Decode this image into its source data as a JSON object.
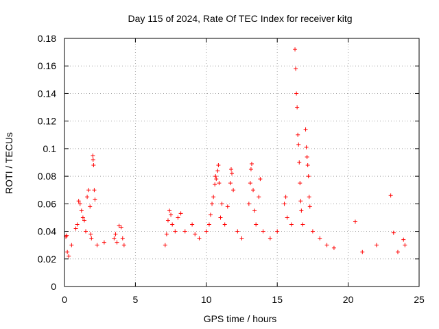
{
  "chart_data": {
    "type": "scatter",
    "title": "Day 115 of 2024, Rate Of TEC Index for receiver kitg",
    "xlabel": "GPS time / hours",
    "ylabel": "ROTI / TECUs",
    "xlim": [
      0,
      25
    ],
    "ylim": [
      0,
      0.18
    ],
    "x_ticks": [
      0,
      5,
      10,
      15,
      20,
      25
    ],
    "x_tick_labels": [
      "0",
      "5",
      "10",
      "15",
      "20",
      "25"
    ],
    "y_ticks": [
      0,
      0.02,
      0.04,
      0.06,
      0.08,
      0.1,
      0.12,
      0.14,
      0.16,
      0.18
    ],
    "y_tick_labels": [
      "0",
      "0.02",
      "0.04",
      "0.06",
      "0.08",
      "0.1",
      "0.12",
      "0.14",
      "0.16",
      "0.18"
    ],
    "grid": true,
    "marker": "+",
    "series_color": "#ff0000",
    "data_gap_hours": [
      4.3,
      7.0
    ],
    "series": [
      {
        "name": "ROTI",
        "points": [
          [
            0.1,
            0.036
          ],
          [
            0.15,
            0.037
          ],
          [
            0.2,
            0.025
          ],
          [
            0.3,
            0.022
          ],
          [
            0.5,
            0.03
          ],
          [
            0.8,
            0.042
          ],
          [
            0.9,
            0.045
          ],
          [
            1.0,
            0.062
          ],
          [
            1.1,
            0.06
          ],
          [
            1.2,
            0.055
          ],
          [
            1.3,
            0.05
          ],
          [
            1.4,
            0.048
          ],
          [
            1.5,
            0.04
          ],
          [
            1.6,
            0.065
          ],
          [
            1.7,
            0.07
          ],
          [
            1.8,
            0.058
          ],
          [
            1.85,
            0.038
          ],
          [
            1.9,
            0.035
          ],
          [
            2.0,
            0.095
          ],
          [
            2.02,
            0.092
          ],
          [
            2.05,
            0.088
          ],
          [
            2.1,
            0.07
          ],
          [
            2.15,
            0.063
          ],
          [
            2.3,
            0.03
          ],
          [
            2.8,
            0.032
          ],
          [
            3.5,
            0.035
          ],
          [
            3.6,
            0.038
          ],
          [
            3.7,
            0.032
          ],
          [
            3.85,
            0.044
          ],
          [
            4.0,
            0.043
          ],
          [
            4.1,
            0.035
          ],
          [
            4.2,
            0.03
          ],
          [
            7.1,
            0.03
          ],
          [
            7.2,
            0.038
          ],
          [
            7.3,
            0.048
          ],
          [
            7.4,
            0.055
          ],
          [
            7.5,
            0.052
          ],
          [
            7.6,
            0.045
          ],
          [
            7.8,
            0.04
          ],
          [
            8.0,
            0.05
          ],
          [
            8.2,
            0.053
          ],
          [
            8.5,
            0.04
          ],
          [
            9.0,
            0.045
          ],
          [
            9.2,
            0.038
          ],
          [
            9.5,
            0.035
          ],
          [
            10.0,
            0.04
          ],
          [
            10.2,
            0.045
          ],
          [
            10.3,
            0.052
          ],
          [
            10.4,
            0.06
          ],
          [
            10.5,
            0.065
          ],
          [
            10.6,
            0.074
          ],
          [
            10.65,
            0.08
          ],
          [
            10.7,
            0.078
          ],
          [
            10.8,
            0.084
          ],
          [
            10.85,
            0.088
          ],
          [
            10.9,
            0.075
          ],
          [
            11.0,
            0.05
          ],
          [
            11.1,
            0.06
          ],
          [
            11.3,
            0.045
          ],
          [
            11.5,
            0.058
          ],
          [
            11.7,
            0.075
          ],
          [
            11.75,
            0.085
          ],
          [
            11.8,
            0.082
          ],
          [
            11.9,
            0.07
          ],
          [
            12.2,
            0.04
          ],
          [
            12.5,
            0.035
          ],
          [
            13.0,
            0.06
          ],
          [
            13.1,
            0.075
          ],
          [
            13.15,
            0.085
          ],
          [
            13.2,
            0.089
          ],
          [
            13.3,
            0.07
          ],
          [
            13.4,
            0.055
          ],
          [
            13.5,
            0.045
          ],
          [
            13.7,
            0.065
          ],
          [
            13.8,
            0.078
          ],
          [
            14.0,
            0.04
          ],
          [
            14.5,
            0.035
          ],
          [
            15.0,
            0.04
          ],
          [
            15.5,
            0.06
          ],
          [
            15.6,
            0.065
          ],
          [
            15.7,
            0.05
          ],
          [
            16.0,
            0.045
          ],
          [
            16.25,
            0.172
          ],
          [
            16.3,
            0.158
          ],
          [
            16.35,
            0.14
          ],
          [
            16.4,
            0.13
          ],
          [
            16.45,
            0.11
          ],
          [
            16.5,
            0.103
          ],
          [
            16.55,
            0.09
          ],
          [
            16.6,
            0.075
          ],
          [
            16.65,
            0.062
          ],
          [
            16.7,
            0.055
          ],
          [
            16.8,
            0.045
          ],
          [
            17.0,
            0.114
          ],
          [
            17.05,
            0.101
          ],
          [
            17.1,
            0.094
          ],
          [
            17.15,
            0.088
          ],
          [
            17.2,
            0.08
          ],
          [
            17.25,
            0.065
          ],
          [
            17.3,
            0.058
          ],
          [
            17.5,
            0.04
          ],
          [
            18.0,
            0.035
          ],
          [
            18.5,
            0.03
          ],
          [
            19.0,
            0.028
          ],
          [
            20.5,
            0.047
          ],
          [
            21.0,
            0.025
          ],
          [
            22.0,
            0.03
          ],
          [
            23.0,
            0.066
          ],
          [
            23.2,
            0.039
          ],
          [
            23.5,
            0.025
          ],
          [
            23.9,
            0.034
          ],
          [
            24.0,
            0.03
          ]
        ]
      }
    ]
  }
}
